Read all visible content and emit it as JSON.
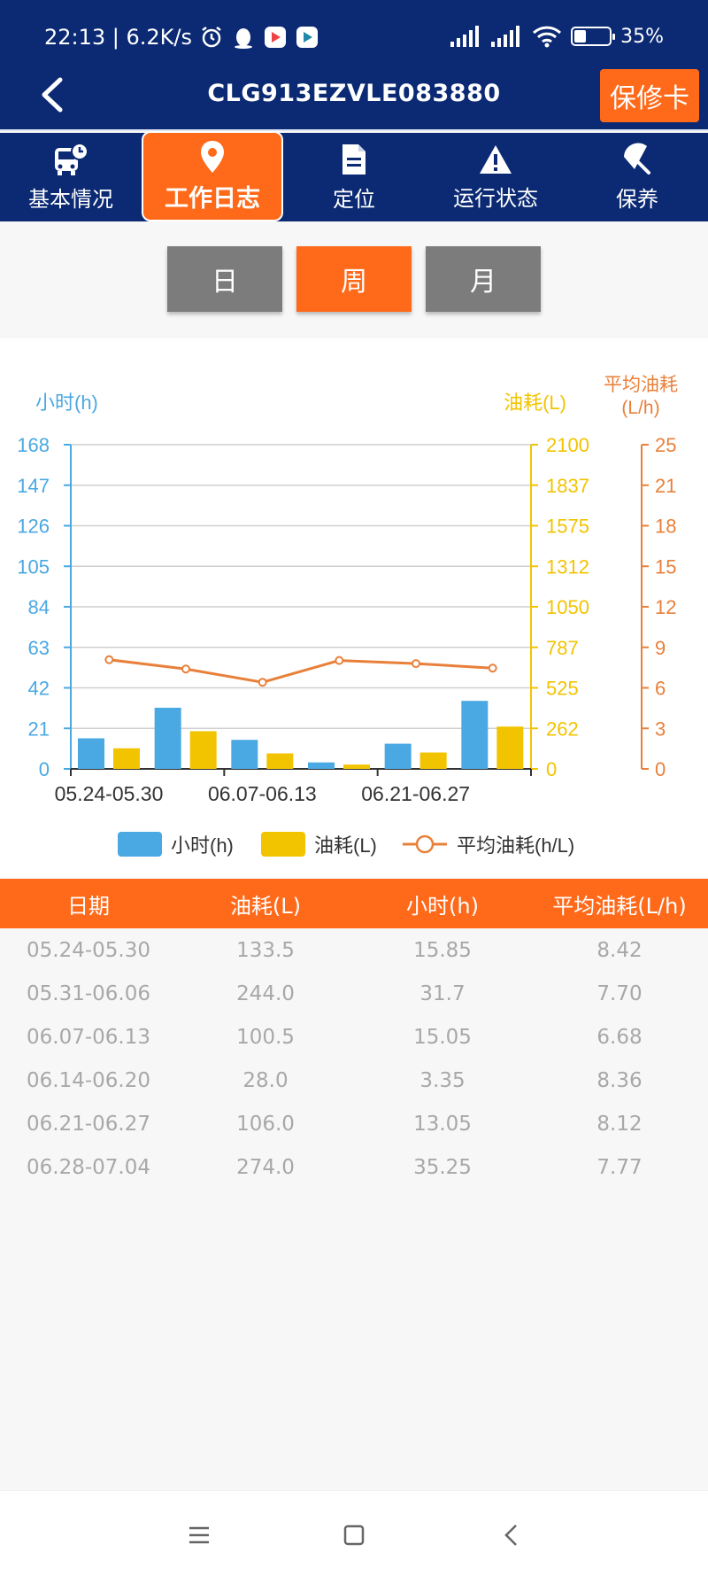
{
  "status_bar": {
    "time_speed": "22:13 | 6.2K/s",
    "battery": "35%",
    "battery_level": 0.35,
    "icons": [
      "alarm-icon",
      "qq-icon",
      "play-store-icon",
      "play-store-icon",
      "signal-icon",
      "hd-signal-icon",
      "wifi-icon",
      "battery-icon"
    ]
  },
  "header": {
    "title": "CLG913EZVLE083880",
    "warranty_label": "保修卡"
  },
  "tabs": [
    {
      "label": "基本情况",
      "icon": "bus-clock-icon"
    },
    {
      "label": "工作日志",
      "icon": "location-pin-icon"
    },
    {
      "label": "定位",
      "icon": "document-icon"
    },
    {
      "label": "运行状态",
      "icon": "warning-icon"
    },
    {
      "label": "保养",
      "icon": "umbrella-icon"
    }
  ],
  "period": {
    "day": "日",
    "week": "周",
    "month": "月",
    "selected": "周"
  },
  "colors": {
    "brand_blue": "#0b2a73",
    "accent_orange": "#ff6a1a",
    "hours_blue": "#4aa8e2",
    "fuel_yellow": "#f2c400",
    "avg_orange": "#e8803a"
  },
  "chart_data": {
    "type": "bar",
    "categories": [
      "05.24-05.30",
      "05.31-06.06",
      "06.07-06.13",
      "06.14-06.20",
      "06.21-06.27",
      "06.28-07.04"
    ],
    "tick_labels_x": [
      "05.24-05.30",
      "06.07-06.13",
      "06.21-06.27"
    ],
    "series": [
      {
        "name": "小时(h)",
        "type": "bar",
        "axis": "left",
        "values": [
          15.85,
          31.7,
          15.05,
          3.35,
          13.05,
          35.25
        ]
      },
      {
        "name": "油耗(L)",
        "type": "bar",
        "axis": "right",
        "values": [
          133.5,
          244.0,
          100.5,
          28.0,
          106.0,
          274.0
        ]
      },
      {
        "name": "平均油耗(h/L)",
        "type": "line",
        "axis": "right2",
        "values": [
          8.42,
          7.7,
          6.68,
          8.36,
          8.12,
          7.77
        ]
      }
    ],
    "axes": {
      "left": {
        "label": "小时(h)",
        "ticks": [
          "0",
          "21",
          "42",
          "63",
          "84",
          "105",
          "126",
          "147",
          "168"
        ],
        "range": [
          0,
          168
        ]
      },
      "right": {
        "label": "油耗(L)",
        "ticks": [
          "0",
          "262",
          "525",
          "787",
          "1050",
          "1312",
          "1575",
          "1837",
          "2100"
        ],
        "range": [
          0,
          2100
        ]
      },
      "right2": {
        "label_line1": "平均油耗",
        "label_line2": "(L/h)",
        "ticks": [
          "0",
          "3",
          "6",
          "9",
          "12",
          "15",
          "18",
          "21",
          "25"
        ],
        "range": [
          0,
          25
        ]
      }
    },
    "legend": [
      {
        "label": "小时(h)",
        "marker": "bar"
      },
      {
        "label": "油耗(L)",
        "marker": "bar"
      },
      {
        "label": "平均油耗(h/L)",
        "marker": "line"
      }
    ],
    "legend_position": "bottom",
    "grid": true
  },
  "table": {
    "headers": [
      "日期",
      "油耗(L)",
      "小时(h)",
      "平均油耗(L/h)"
    ],
    "rows": [
      [
        "05.24-05.30",
        "133.5",
        "15.85",
        "8.42"
      ],
      [
        "05.31-06.06",
        "244.0",
        "31.7",
        "7.70"
      ],
      [
        "06.07-06.13",
        "100.5",
        "15.05",
        "6.68"
      ],
      [
        "06.14-06.20",
        "28.0",
        "3.35",
        "8.36"
      ],
      [
        "06.21-06.27",
        "106.0",
        "13.05",
        "8.12"
      ],
      [
        "06.28-07.04",
        "274.0",
        "35.25",
        "7.77"
      ]
    ]
  },
  "nav": [
    "menu-icon",
    "home-icon",
    "back-icon"
  ]
}
